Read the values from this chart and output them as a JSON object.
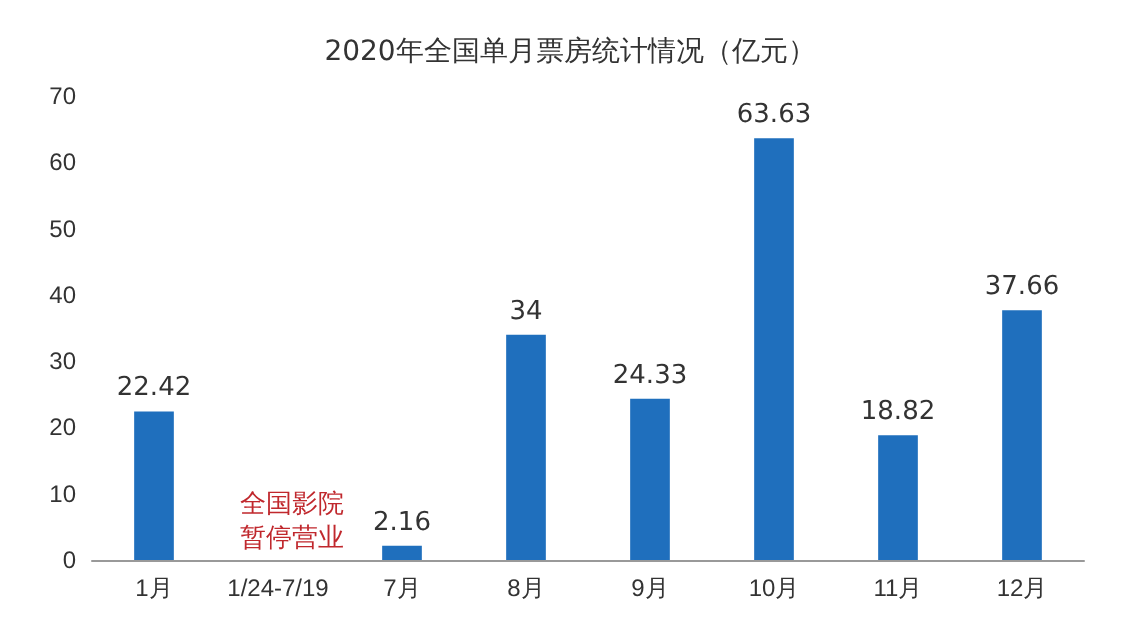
{
  "chart_data": {
    "type": "bar",
    "title": "2020年全国单月票房统计情况（亿元）",
    "categories": [
      "1月",
      "1/24-7/19",
      "7月",
      "8月",
      "9月",
      "10月",
      "11月",
      "12月"
    ],
    "values": [
      22.42,
      null,
      2.16,
      34,
      24.33,
      63.63,
      18.82,
      37.66
    ],
    "color": "#1f6fbd",
    "ylim": [
      0,
      70
    ],
    "yticks": [
      0,
      10,
      20,
      30,
      40,
      50,
      60,
      70
    ],
    "grid": false,
    "data_labels": true,
    "annotations": [
      "全国影院暂停营业"
    ]
  }
}
